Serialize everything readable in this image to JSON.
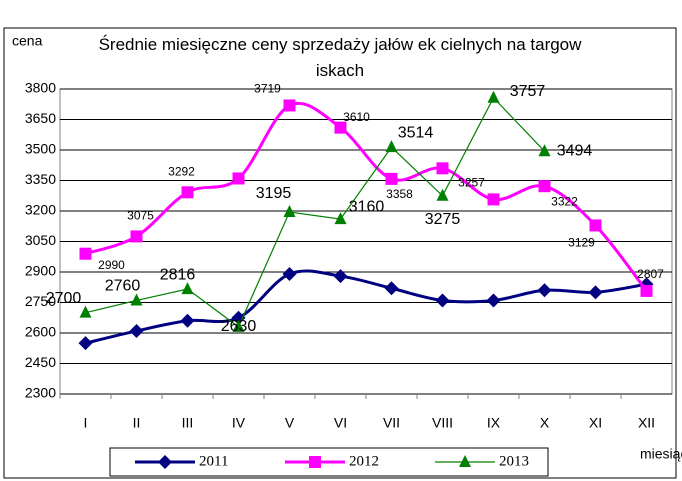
{
  "chart_data": {
    "type": "line",
    "title": "Średnie miesięczne ceny sprzedaży jałów ek cielnych na targow iskach",
    "y_label": "cena",
    "x_label": "miesiąc",
    "categories": [
      "I",
      "II",
      "III",
      "IV",
      "V",
      "VI",
      "VII",
      "VIII",
      "IX",
      "X",
      "XI",
      "XII"
    ],
    "ylim": [
      2300,
      3800
    ],
    "yticks": [
      2300,
      2450,
      2600,
      2750,
      2900,
      3050,
      3200,
      3350,
      3500,
      3650,
      3800
    ],
    "grid": true,
    "series": [
      {
        "name": "2011",
        "color": "#000080",
        "marker": "diamond",
        "smooth": true,
        "values": [
          2550,
          2610,
          2660,
          2675,
          2890,
          2880,
          2820,
          2760,
          2760,
          2810,
          2800,
          2840
        ]
      },
      {
        "name": "2012",
        "color": "#ff00ff",
        "marker": "square",
        "smooth": true,
        "values": [
          2990,
          3075,
          3292,
          3360,
          3719,
          3610,
          3358,
          3410,
          3257,
          3322,
          3129,
          2807
        ],
        "value_labels": [
          "2990",
          "3075",
          "3292",
          null,
          "3719",
          "3610",
          "3358",
          null,
          "3257",
          "3322",
          "3129",
          "2807"
        ]
      },
      {
        "name": "2013",
        "color": "#008000",
        "marker": "triangle",
        "smooth": false,
        "values": [
          2700,
          2760,
          2816,
          2630,
          3195,
          3160,
          3514,
          3275,
          3757,
          3494,
          null,
          null
        ],
        "value_labels": [
          "2700",
          "2760",
          "2816",
          "2630",
          "3195",
          "3160",
          "3514",
          "3275",
          "3757",
          "3494",
          null,
          null
        ]
      }
    ]
  }
}
